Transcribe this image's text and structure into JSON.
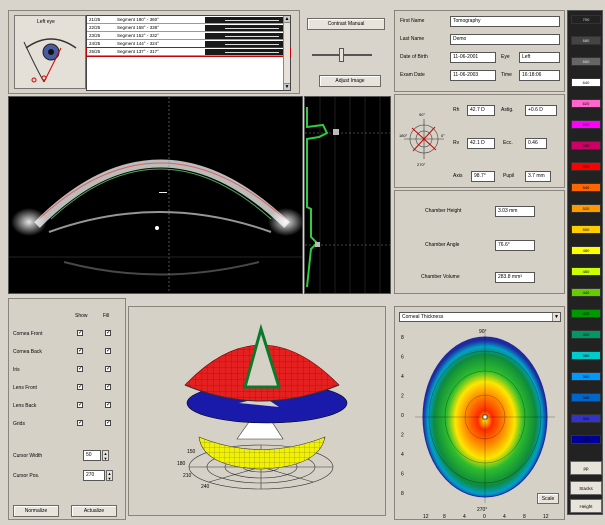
{
  "eye_label": "Left eye",
  "segments": [
    {
      "num": "21/25",
      "text": "Segment 180° - 360°"
    },
    {
      "num": "22/25",
      "text": "Segment 158° - 338°"
    },
    {
      "num": "23/25",
      "text": "Segment 152° - 332°"
    },
    {
      "num": "24/25",
      "text": "Segment 144° - 324°"
    },
    {
      "num": "25/25",
      "text": "Segment 137° - 317°"
    }
  ],
  "buttons": {
    "contrast": "Contrast Manual",
    "adjust": "Adjust Image",
    "normalize": "Normalize",
    "actualize": "Actualize",
    "scale": "Scale"
  },
  "patient": {
    "first_name_label": "First Name",
    "first_name": "Tomography",
    "last_name_label": "Last Name",
    "last_name": "Demo",
    "dob_label": "Date of Birth",
    "dob": "11-06-2001",
    "eye_label": "Eye",
    "eye": "Left",
    "exam_label": "Exam Date",
    "exam": "11-06-2003",
    "time_label": "Time",
    "time": "16:18:06"
  },
  "kerato": {
    "rh_label": "Rh",
    "rh": "42.7 D",
    "rv_label": "Rv",
    "rv": "42.1 D",
    "axis_label": "Axis",
    "axis": "98.7°",
    "astig_label": "Astig.",
    "astig": "+0.6 D",
    "ecc_label": "Ecc.",
    "ecc": "0.46",
    "pupil_label": "Pupil",
    "pupil": "3.7 mm",
    "deg_top": "90°",
    "deg_bottom": "270°",
    "deg_left": "180°",
    "deg_right": "0°"
  },
  "chamber": {
    "height_label": "Chamber Height",
    "height": "3.03 mm",
    "angle_label": "Chamber Angle",
    "angle": "76.6°",
    "volume_label": "Chamber Volume",
    "volume": "283.8 mm³"
  },
  "layers": {
    "header_show": "Show",
    "header_fill": "Fill",
    "items": [
      "Cornea Front",
      "Cornea Back",
      "Iris",
      "Lens Front",
      "Lens Back",
      "Grids"
    ],
    "cursor_width_label": "Cursor Width",
    "cursor_width": "50",
    "cursor_pos_label": "Cursor Pos.",
    "cursor_pos": "270"
  },
  "map": {
    "dropdown": "Corneal Thickness",
    "y_ticks": [
      "8",
      "6",
      "4",
      "2",
      "0",
      "2",
      "4",
      "6",
      "8"
    ],
    "x_ticks": [
      "12",
      "8",
      "4",
      "0",
      "4",
      "8",
      "12"
    ],
    "deg_top": "90°",
    "deg_bottom": "270°"
  },
  "polar3d": {
    "r_ticks": [
      "150",
      "180",
      "210",
      "240"
    ]
  },
  "palette": {
    "swatches": [
      "700",
      "680",
      "660",
      "640",
      "620",
      "600",
      "580",
      "560",
      "540",
      "520",
      "500",
      "480",
      "460",
      "440",
      "420",
      "400",
      "380",
      "360",
      "340",
      "320",
      "300"
    ],
    "colors": [
      "#222222",
      "#444444",
      "#666666",
      "#ffffff",
      "#ff66cc",
      "#ff00ff",
      "#cc0066",
      "#ff0000",
      "#ff6600",
      "#ff9900",
      "#ffcc00",
      "#ffff00",
      "#ccff00",
      "#66cc00",
      "#009900",
      "#009966",
      "#00cccc",
      "#0099ff",
      "#0066cc",
      "#3333cc",
      "#000099"
    ],
    "btn_pp": "pp",
    "btn_stacks": "Stacks",
    "btn_height": "Height"
  }
}
